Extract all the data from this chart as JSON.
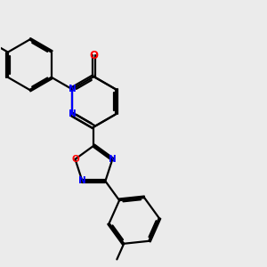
{
  "background_color": "#ebebeb",
  "bond_color": "#000000",
  "nitrogen_color": "#0000ff",
  "oxygen_color": "#ff0000",
  "line_width": 1.6,
  "figsize": [
    3.0,
    3.0
  ],
  "dpi": 100,
  "xlim": [
    0,
    10
  ],
  "ylim": [
    0,
    10
  ]
}
